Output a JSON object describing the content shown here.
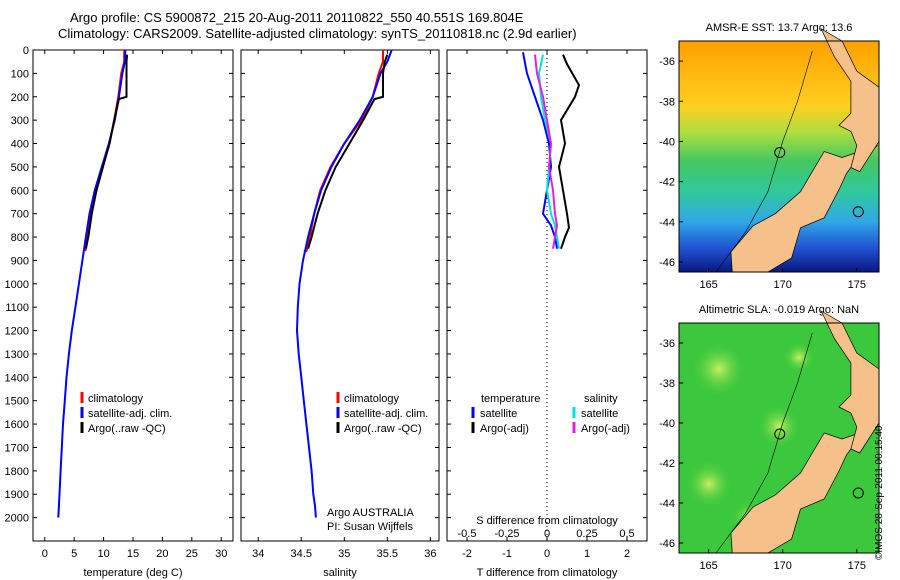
{
  "header": {
    "title1": "Argo profile: CS 5900872_215 20-Aug-2011 20110822_550 40.551S 169.804E",
    "title2": "Climatology: CARS2009. Satellite-adjusted climatology: synTS_20110818.nc (2.9d earlier)"
  },
  "chart_data": [
    {
      "type": "line",
      "id": "temperature",
      "xlabel": "temperature (deg C)",
      "ylabel": "",
      "xlim": [
        -2,
        32
      ],
      "ylim": [
        2100,
        0
      ],
      "xticks": [
        "0",
        "5",
        "10",
        "15",
        "20",
        "25",
        "30"
      ],
      "yticks": [
        "0",
        "100",
        "200",
        "300",
        "400",
        "500",
        "600",
        "700",
        "800",
        "900",
        "1000",
        "1100",
        "1200",
        "1300",
        "1400",
        "1500",
        "1600",
        "1700",
        "1800",
        "1900",
        "2000"
      ],
      "legend": [
        "climatology",
        "satellite-adj. clim.",
        "Argo(..raw -QC)"
      ],
      "legend_position": "lower-right",
      "series": [
        {
          "name": "climatology",
          "color": "#ff0000",
          "x": [
            13.5,
            13.5,
            13.0,
            12.5,
            11.8,
            11.0,
            9.8,
            8.6,
            7.8,
            7.3,
            6.9
          ],
          "y": [
            0,
            50,
            100,
            200,
            300,
            400,
            500,
            600,
            700,
            800,
            860
          ]
        },
        {
          "name": "satellite-adj. clim.",
          "color": "#0000ff",
          "x": [
            13.7,
            13.6,
            13.2,
            12.6,
            11.9,
            10.9,
            9.7,
            8.5,
            7.6,
            7.0,
            6.4,
            5.8,
            5.2,
            4.6,
            4.1,
            3.7,
            3.4,
            3.1,
            2.9,
            2.7,
            2.5,
            2.4,
            2.3
          ],
          "y": [
            0,
            50,
            100,
            200,
            300,
            400,
            500,
            600,
            700,
            800,
            900,
            1000,
            1100,
            1200,
            1300,
            1400,
            1500,
            1600,
            1700,
            1800,
            1900,
            1950,
            2000
          ]
        },
        {
          "name": "Argo(..raw -QC)",
          "color": "#000000",
          "x": [
            14.0,
            13.9,
            13.9,
            13.9,
            12.6,
            11.8,
            11.0,
            9.9,
            8.8,
            8.0,
            7.4,
            7.0
          ],
          "y": [
            20,
            50,
            100,
            200,
            210,
            300,
            400,
            500,
            600,
            700,
            800,
            850
          ]
        }
      ]
    },
    {
      "type": "line",
      "id": "salinity",
      "xlabel": "salinity",
      "ylabel": "",
      "xlim": [
        33.8,
        36.1
      ],
      "ylim": [
        2100,
        0
      ],
      "xticks": [
        "34",
        "34.5",
        "35",
        "35.5",
        "36"
      ],
      "legend": [
        "climatology",
        "satellite-adj. clim.",
        "Argo(..raw -QC)"
      ],
      "legend_position": "lower-right",
      "annotations": [
        "Argo AUSTRALIA",
        "PI: Susan Wijffels"
      ],
      "series": [
        {
          "name": "climatology",
          "color": "#ff0000",
          "x": [
            35.45,
            35.45,
            35.4,
            35.33,
            35.2,
            35.0,
            34.84,
            34.72,
            34.65,
            34.6,
            34.56,
            34.53
          ],
          "y": [
            0,
            50,
            100,
            200,
            300,
            400,
            500,
            600,
            700,
            800,
            860,
            860
          ]
        },
        {
          "name": "satellite-adj. clim.",
          "color": "#0000ff",
          "x": [
            35.55,
            35.5,
            35.42,
            35.33,
            35.18,
            35.0,
            34.85,
            34.73,
            34.65,
            34.58,
            34.52,
            34.48,
            34.46,
            34.45,
            34.47,
            34.5,
            34.53,
            34.56,
            34.59,
            34.62,
            34.64,
            34.66,
            34.67
          ],
          "y": [
            0,
            50,
            100,
            200,
            300,
            400,
            500,
            600,
            700,
            800,
            900,
            1000,
            1100,
            1200,
            1300,
            1400,
            1500,
            1600,
            1700,
            1800,
            1900,
            1950,
            2000
          ]
        },
        {
          "name": "Argo(..raw -QC)",
          "color": "#000000",
          "x": [
            35.5,
            35.47,
            35.45,
            35.45,
            35.35,
            35.22,
            35.06,
            34.9,
            34.78,
            34.69,
            34.62,
            34.58
          ],
          "y": [
            20,
            50,
            100,
            200,
            210,
            300,
            400,
            500,
            600,
            700,
            800,
            850
          ]
        }
      ]
    },
    {
      "type": "line",
      "id": "difference",
      "xlabel": "T difference from climatology",
      "xlabel_top": "S difference from climatology",
      "xlim": [
        -2.5,
        2.5
      ],
      "ylim": [
        2100,
        0
      ],
      "xticks": [
        "-2",
        "-1",
        "0",
        "1",
        "2"
      ],
      "xticks_salinity": [
        "-0.5",
        "-0.25",
        "0",
        "0.25",
        "0.5"
      ],
      "legend_titles": [
        "temperature",
        "salinity"
      ],
      "legend": [
        "satellite",
        "Argo(-adj)",
        "satellite",
        "Argo(-adj)"
      ],
      "series": [
        {
          "name": "satellite",
          "group": "temperature",
          "color": "#0000ff",
          "x": [
            -0.6,
            -0.5,
            -0.3,
            -0.1,
            0.05,
            0.1,
            0.0,
            -0.1,
            0.1,
            0.2,
            0.25
          ],
          "y": [
            10,
            100,
            200,
            300,
            400,
            500,
            600,
            700,
            750,
            800,
            850
          ]
        },
        {
          "name": "Argo(-adj)",
          "group": "temperature",
          "color": "#000000",
          "x": [
            0.4,
            0.5,
            0.8,
            0.7,
            0.35,
            0.45,
            0.3,
            0.4,
            0.5,
            0.55,
            0.45,
            0.35
          ],
          "y": [
            20,
            60,
            150,
            200,
            300,
            400,
            500,
            600,
            700,
            760,
            800,
            850
          ]
        },
        {
          "name": "satellite",
          "group": "salinity",
          "color": "#00e0e0",
          "x": [
            -0.1,
            -0.2,
            -0.15,
            -0.05,
            0.1,
            0.05,
            0.0,
            0.1,
            0.2,
            0.25,
            0.3
          ],
          "y": [
            20,
            100,
            200,
            300,
            400,
            500,
            600,
            700,
            750,
            800,
            850
          ]
        },
        {
          "name": "Argo(-adj)",
          "group": "salinity",
          "color": "#e020e0",
          "x": [
            -0.3,
            -0.25,
            -0.1,
            0.0,
            0.1,
            0.05,
            0.15,
            0.2,
            0.25,
            0.2,
            0.15
          ],
          "y": [
            20,
            100,
            200,
            300,
            400,
            500,
            600,
            700,
            750,
            800,
            850
          ]
        }
      ]
    },
    {
      "type": "heatmap",
      "id": "sst-map",
      "title": "AMSR-E SST: 13.7 Argo: 13.6",
      "xlim": [
        163,
        176.5
      ],
      "ylim": [
        -46.5,
        -35
      ],
      "xticks": [
        "165",
        "170",
        "175"
      ],
      "yticks": [
        "-36",
        "-38",
        "-40",
        "-42",
        "-44",
        "-46"
      ]
    },
    {
      "type": "heatmap",
      "id": "sla-map",
      "title": "Altimetric SLA: -0.019 Argo: NaN",
      "xlim": [
        163,
        176.5
      ],
      "ylim": [
        -46.5,
        -35
      ],
      "xticks": [
        "165",
        "170",
        "175"
      ],
      "yticks": [
        "-36",
        "-38",
        "-40",
        "-42",
        "-44",
        "-46"
      ]
    }
  ],
  "footer": {
    "stamp": "©IMOS 28-Sep-2011 00:15:40"
  }
}
